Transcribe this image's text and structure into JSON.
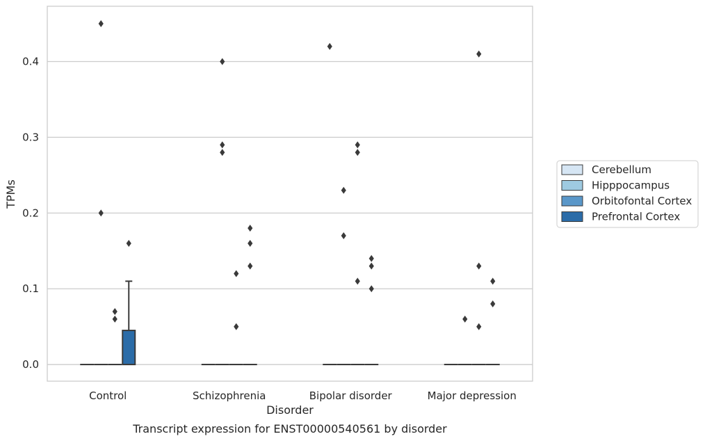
{
  "chart_data": {
    "type": "box",
    "caption": "Transcript expression for ENST00000540561 by disorder",
    "xlabel": "Disorder",
    "ylabel": "TPMs",
    "ylim": [
      -0.022,
      0.473
    ],
    "yticks": [
      0.0,
      0.1,
      0.2,
      0.3,
      0.4
    ],
    "ytick_labels": [
      "0.0",
      "0.1",
      "0.2",
      "0.3",
      "0.4"
    ],
    "grid": "horizontal",
    "legend_position": "right",
    "categories": [
      "Control",
      "Schizophrenia",
      "Bipolar disorder",
      "Major depression"
    ],
    "series": [
      {
        "name": "Cerebellum",
        "color": "#d6e6f4",
        "boxes": [
          {
            "q1": 0,
            "median": 0,
            "q3": 0,
            "whisker_low": 0,
            "whisker_high": 0,
            "outliers": []
          },
          {
            "q1": 0,
            "median": 0,
            "q3": 0,
            "whisker_low": 0,
            "whisker_high": 0,
            "outliers": []
          },
          {
            "q1": 0,
            "median": 0,
            "q3": 0,
            "whisker_low": 0,
            "whisker_high": 0,
            "outliers": [
              0.42
            ]
          },
          {
            "q1": 0,
            "median": 0,
            "q3": 0,
            "whisker_low": 0,
            "whisker_high": 0,
            "outliers": []
          }
        ]
      },
      {
        "name": "Hipppocampus",
        "color": "#9ecae1",
        "boxes": [
          {
            "q1": 0,
            "median": 0,
            "q3": 0,
            "whisker_low": 0,
            "whisker_high": 0,
            "outliers": [
              0.45,
              0.2
            ]
          },
          {
            "q1": 0,
            "median": 0,
            "q3": 0,
            "whisker_low": 0,
            "whisker_high": 0,
            "outliers": [
              0.4,
              0.29,
              0.28
            ]
          },
          {
            "q1": 0,
            "median": 0,
            "q3": 0,
            "whisker_low": 0,
            "whisker_high": 0,
            "outliers": [
              0.23,
              0.17
            ]
          },
          {
            "q1": 0,
            "median": 0,
            "q3": 0,
            "whisker_low": 0,
            "whisker_high": 0,
            "outliers": [
              0.06
            ]
          }
        ]
      },
      {
        "name": "Orbitofontal Cortex",
        "color": "#5a97c9",
        "boxes": [
          {
            "q1": 0,
            "median": 0,
            "q3": 0,
            "whisker_low": 0,
            "whisker_high": 0,
            "outliers": [
              0.07,
              0.06
            ]
          },
          {
            "q1": 0,
            "median": 0,
            "q3": 0,
            "whisker_low": 0,
            "whisker_high": 0,
            "outliers": [
              0.05,
              0.12
            ]
          },
          {
            "q1": 0,
            "median": 0,
            "q3": 0,
            "whisker_low": 0,
            "whisker_high": 0,
            "outliers": [
              0.28,
              0.11,
              0.29
            ]
          },
          {
            "q1": 0,
            "median": 0,
            "q3": 0,
            "whisker_low": 0,
            "whisker_high": 0,
            "outliers": [
              0.41,
              0.13,
              0.05
            ]
          }
        ]
      },
      {
        "name": "Prefrontal Cortex",
        "color": "#2b6ca8",
        "boxes": [
          {
            "q1": 0,
            "median": 0,
            "q3": 0.045,
            "whisker_low": 0,
            "whisker_high": 0.11,
            "outliers": [
              0.16
            ]
          },
          {
            "q1": 0,
            "median": 0,
            "q3": 0,
            "whisker_low": 0,
            "whisker_high": 0,
            "outliers": [
              0.18,
              0.16,
              0.13
            ]
          },
          {
            "q1": 0,
            "median": 0,
            "q3": 0,
            "whisker_low": 0,
            "whisker_high": 0,
            "outliers": [
              0.14,
              0.13,
              0.1
            ]
          },
          {
            "q1": 0,
            "median": 0,
            "q3": 0,
            "whisker_low": 0,
            "whisker_high": 0,
            "outliers": [
              0.11,
              0.08
            ]
          }
        ]
      }
    ]
  }
}
